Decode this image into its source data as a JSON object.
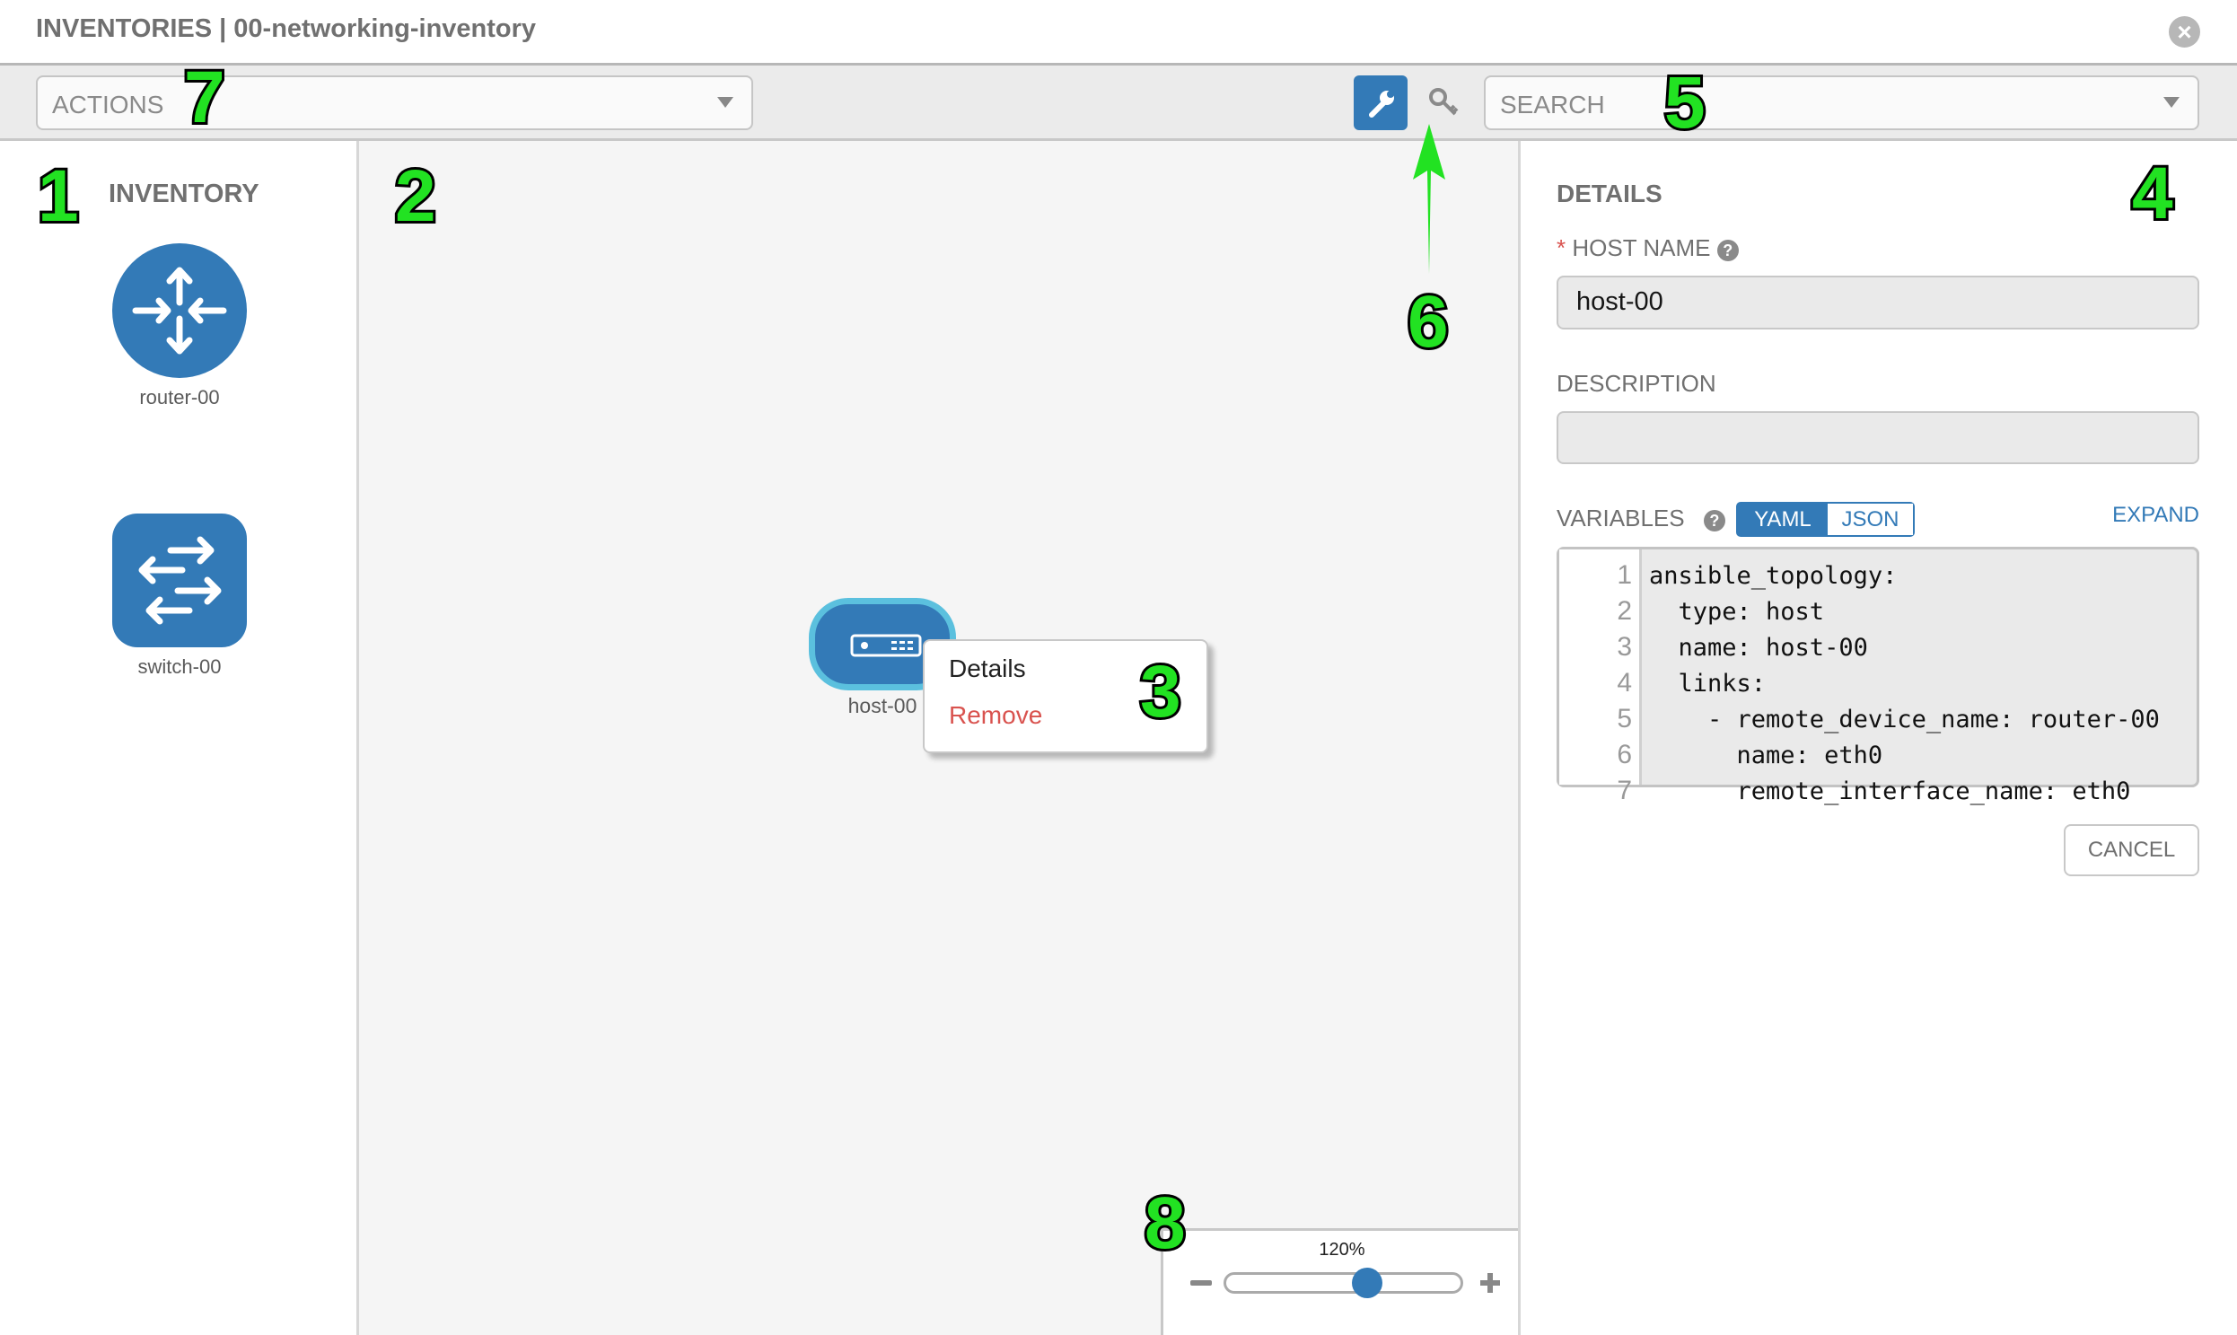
{
  "header": {
    "title": "INVENTORIES | 00-networking-inventory"
  },
  "toolbar": {
    "actions_label": "ACTIONS",
    "search_placeholder": "SEARCH",
    "active_mode_icon": "wrench-icon",
    "alt_mode_icon": "key-icon"
  },
  "inventory": {
    "heading": "INVENTORY",
    "devices": [
      {
        "name": "router-00",
        "type": "router"
      },
      {
        "name": "switch-00",
        "type": "switch"
      }
    ]
  },
  "canvas": {
    "node": {
      "name": "host-00",
      "type": "host"
    },
    "context_menu": {
      "items": [
        {
          "label": "Details"
        },
        {
          "label": "Remove"
        }
      ]
    }
  },
  "details": {
    "heading": "DETAILS",
    "host_name_label": "HOST NAME",
    "required_mark": "*",
    "host_name_value": "host-00",
    "description_label": "DESCRIPTION",
    "description_value": "",
    "variables_label": "VARIABLES",
    "yaml_label": "YAML",
    "json_label": "JSON",
    "selected_format": "YAML",
    "expand_label": "EXPAND",
    "line_numbers": [
      "1",
      "2",
      "3",
      "4",
      "5",
      "6",
      "7"
    ],
    "code_lines": [
      "ansible_topology:",
      "  type: host",
      "  name: host-00",
      "  links:",
      "    - remote_device_name: router-00",
      "      name: eth0",
      "      remote_interface_name: eth0"
    ],
    "cancel_label": "CANCEL"
  },
  "zoom": {
    "label": "120%",
    "slider_fraction": 0.6
  },
  "annotations": [
    "1",
    "2",
    "3",
    "4",
    "5",
    "6",
    "7",
    "8"
  ],
  "colors": {
    "primary": "#337ab7",
    "node_border": "#5bc0de",
    "danger": "#d9534f",
    "annotation": "#22e222"
  }
}
